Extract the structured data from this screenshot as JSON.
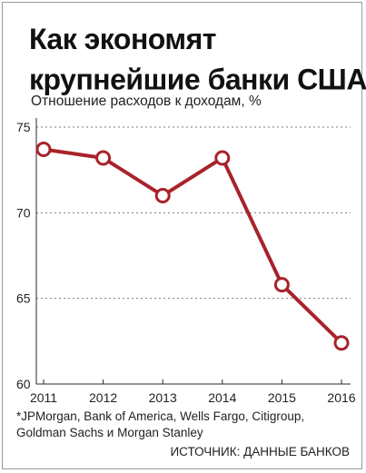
{
  "header": {
    "title_line1": "Как экономят",
    "title_line2": "крупнейшие банки США",
    "title_mark": "*",
    "subtitle": "Отношение расходов к доходам, %"
  },
  "chart_data": {
    "type": "line",
    "title": "Как экономят крупнейшие банки США*",
    "ylabel": "Отношение расходов к доходам, %",
    "xlabel": "",
    "categories": [
      "2011",
      "2012",
      "2013",
      "2014",
      "2015",
      "2016"
    ],
    "series": [
      {
        "values": [
          73.7,
          73.2,
          71.0,
          73.2,
          65.8,
          62.4
        ]
      }
    ],
    "ylim": [
      60,
      75
    ],
    "yticks": [
      "75",
      "70",
      "65",
      "60"
    ],
    "grid": true,
    "colors": {
      "line": "#a8232a",
      "marker_fill": "#ffffff",
      "grid": "#7a7a7a",
      "axis": "#2a2a2a"
    }
  },
  "footer": {
    "note_line1": "*JPMorgan, Bank of America, Wells Fargo, Citigroup,",
    "note_line2": "Goldman Sachs и Morgan Stanley",
    "source": "ИСТОЧНИК: ДАННЫЕ БАНКОВ"
  }
}
